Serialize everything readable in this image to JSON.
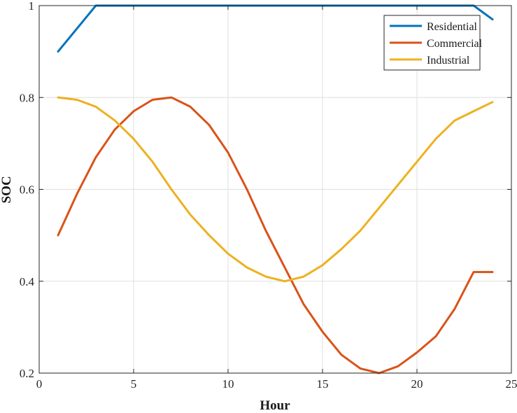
{
  "chart_data": {
    "type": "line",
    "xlabel": "Hour",
    "ylabel": "SOC",
    "xlim": [
      0,
      25
    ],
    "ylim": [
      0.2,
      1
    ],
    "xticks": [
      0,
      5,
      10,
      15,
      20,
      25
    ],
    "yticks": [
      0.2,
      0.4,
      0.6,
      0.8,
      1
    ],
    "xtick_labels": [
      "0",
      "5",
      "10",
      "15",
      "20",
      "25"
    ],
    "ytick_labels": [
      "0.2",
      "0.4",
      "0.6",
      "0.8",
      "1"
    ],
    "grid": true,
    "legend_position": "top-right",
    "x": [
      1,
      2,
      3,
      4,
      5,
      6,
      7,
      8,
      9,
      10,
      11,
      12,
      13,
      14,
      15,
      16,
      17,
      18,
      19,
      20,
      21,
      22,
      23,
      24
    ],
    "series": [
      {
        "name": "Residential",
        "color": "#0072BD",
        "values": [
          0.9,
          0.95,
          1.0,
          1.0,
          1.0,
          1.0,
          1.0,
          1.0,
          1.0,
          1.0,
          1.0,
          1.0,
          1.0,
          1.0,
          1.0,
          1.0,
          1.0,
          1.0,
          1.0,
          1.0,
          1.0,
          1.0,
          1.0,
          0.97
        ]
      },
      {
        "name": "Commercial",
        "color": "#D95319",
        "values": [
          0.5,
          0.59,
          0.67,
          0.73,
          0.77,
          0.795,
          0.8,
          0.78,
          0.74,
          0.68,
          0.6,
          0.51,
          0.43,
          0.35,
          0.29,
          0.24,
          0.21,
          0.2,
          0.215,
          0.245,
          0.28,
          0.34,
          0.42,
          0.42
        ]
      },
      {
        "name": "Industrial",
        "color": "#EDB120",
        "values": [
          0.8,
          0.795,
          0.78,
          0.75,
          0.71,
          0.66,
          0.6,
          0.545,
          0.5,
          0.46,
          0.43,
          0.41,
          0.4,
          0.41,
          0.435,
          0.47,
          0.51,
          0.56,
          0.61,
          0.66,
          0.71,
          0.75,
          0.77,
          0.79
        ]
      }
    ]
  }
}
